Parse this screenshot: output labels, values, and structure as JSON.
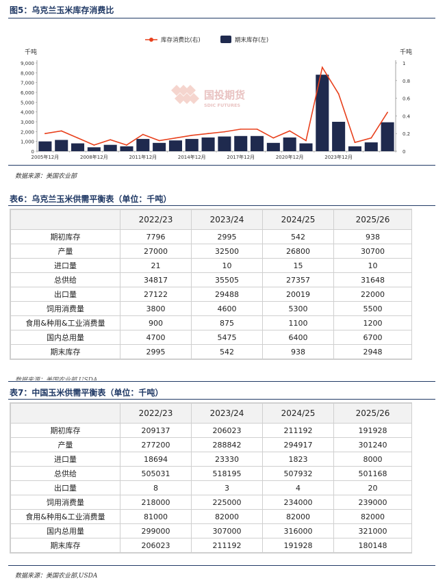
{
  "figure": {
    "title": "图5：乌克兰玉米库存消费比",
    "source": "数据来源：美国农业部",
    "watermark": {
      "name": "国投期货",
      "sub": "SDIC FUTURES"
    }
  },
  "chart_data": {
    "type": "bar+line",
    "left_axis_unit": "千吨",
    "right_axis_unit": "千吨",
    "left_ylim": [
      0,
      9000
    ],
    "left_ticks": [
      "0",
      "1,000",
      "2,000",
      "3,000",
      "4,000",
      "5,000",
      "6,000",
      "7,000",
      "8,000",
      "9,000"
    ],
    "right_ylim": [
      0,
      1
    ],
    "right_ticks": [
      "0",
      "0.2",
      "0.4",
      "0.6",
      "0.8",
      "1"
    ],
    "x_tick_labels": [
      "2005年12月",
      "2008年12月",
      "2011年12月",
      "2014年12月",
      "2017年12月",
      "2020年12月",
      "2023年12月"
    ],
    "legend_position": "top-center",
    "series": [
      {
        "name": "库存消费比(右)",
        "type": "line",
        "axis": "right",
        "color": "#e8401c",
        "values": [
          0.2,
          0.23,
          0.15,
          0.07,
          0.13,
          0.07,
          0.19,
          0.12,
          0.15,
          0.18,
          0.2,
          0.22,
          0.25,
          0.25,
          0.15,
          0.23,
          0.12,
          0.95,
          0.65,
          0.1,
          0.15,
          0.44
        ]
      },
      {
        "name": "期末库存(左)",
        "type": "bar",
        "axis": "left",
        "color": "#1f2a4e",
        "values": [
          1000,
          1150,
          800,
          400,
          650,
          500,
          1250,
          850,
          1100,
          1250,
          1400,
          1500,
          1550,
          1550,
          850,
          1400,
          800,
          7800,
          3000,
          500,
          900,
          2950
        ]
      }
    ]
  },
  "table6": {
    "title": "表6：乌克兰玉米供需平衡表（单位：千吨）",
    "headers": [
      "",
      "2022/23",
      "2023/24",
      "2024/25",
      "2025/26"
    ],
    "rows": [
      [
        "期初库存",
        "7796",
        "2995",
        "542",
        "938"
      ],
      [
        "产量",
        "27000",
        "32500",
        "26800",
        "30700"
      ],
      [
        "进口量",
        "21",
        "10",
        "15",
        "10"
      ],
      [
        "总供给",
        "34817",
        "35505",
        "27357",
        "31648"
      ],
      [
        "出口量",
        "27122",
        "29488",
        "20019",
        "22000"
      ],
      [
        "饲用消费量",
        "3800",
        "4600",
        "5300",
        "5500"
      ],
      [
        "食用&种用&工业消费量",
        "900",
        "875",
        "1100",
        "1200"
      ],
      [
        "国内总用量",
        "4700",
        "5475",
        "6400",
        "6700"
      ],
      [
        "期末库存",
        "2995",
        "542",
        "938",
        "2948"
      ]
    ],
    "source_clipped": "数据来源：美国农业部,USDA"
  },
  "table7": {
    "title": "表7：中国玉米供需平衡表（单位：千吨）",
    "headers": [
      "",
      "2022/23",
      "2023/24",
      "2024/25",
      "2025/26"
    ],
    "rows": [
      [
        "期初库存",
        "209137",
        "206023",
        "211192",
        "191928"
      ],
      [
        "产量",
        "277200",
        "288842",
        "294917",
        "301240"
      ],
      [
        "进口量",
        "18694",
        "23330",
        "1823",
        "8000"
      ],
      [
        "总供给",
        "505031",
        "518195",
        "507932",
        "501168"
      ],
      [
        "出口量",
        "8",
        "3",
        "4",
        "20"
      ],
      [
        "饲用消费量",
        "218000",
        "225000",
        "234000",
        "239000"
      ],
      [
        "食用&种用&工业消费量",
        "81000",
        "82000",
        "82000",
        "82000"
      ],
      [
        "国内总用量",
        "299000",
        "307000",
        "316000",
        "321000"
      ],
      [
        "期末库存",
        "206023",
        "211192",
        "191928",
        "180148"
      ]
    ],
    "source": "数据来源：美国农业部,USDA"
  }
}
